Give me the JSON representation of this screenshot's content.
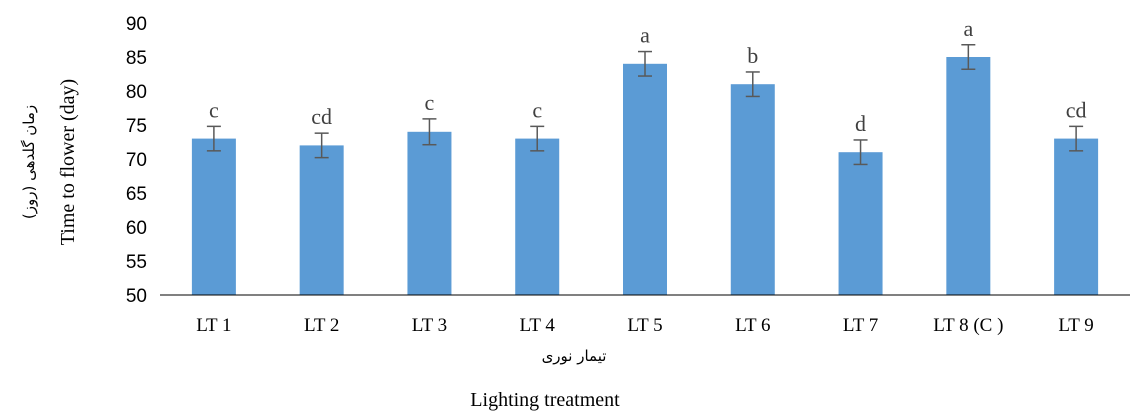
{
  "chart_data": {
    "type": "bar",
    "title": "",
    "categories": [
      "LT 1",
      "LT 2",
      "LT 3",
      "LT 4",
      "LT 5",
      "LT 6",
      "LT 7",
      "LT 8 (C )",
      "LT 9"
    ],
    "values": [
      73,
      72,
      74,
      73,
      84,
      81,
      71,
      85,
      73
    ],
    "error": [
      1.8,
      1.8,
      1.9,
      1.8,
      1.8,
      1.8,
      1.8,
      1.8,
      1.8
    ],
    "significance_letters": [
      "c",
      "cd",
      "c",
      "c",
      "a",
      "b",
      "d",
      "a",
      "cd"
    ],
    "xlabel": "Lighting treatment",
    "xlabel_fa": "تیمار نوری",
    "ylabel": "Time to flower (day)",
    "ylabel_fa": "زمان گلدهی (روز)",
    "ylim": [
      50,
      90
    ],
    "yticks": [
      50,
      55,
      60,
      65,
      70,
      75,
      80,
      85,
      90
    ],
    "grid": false,
    "legend": "none",
    "colors": {
      "bar": "#5b9bd5",
      "error_bar": "#595959",
      "axis": "#000000"
    }
  }
}
